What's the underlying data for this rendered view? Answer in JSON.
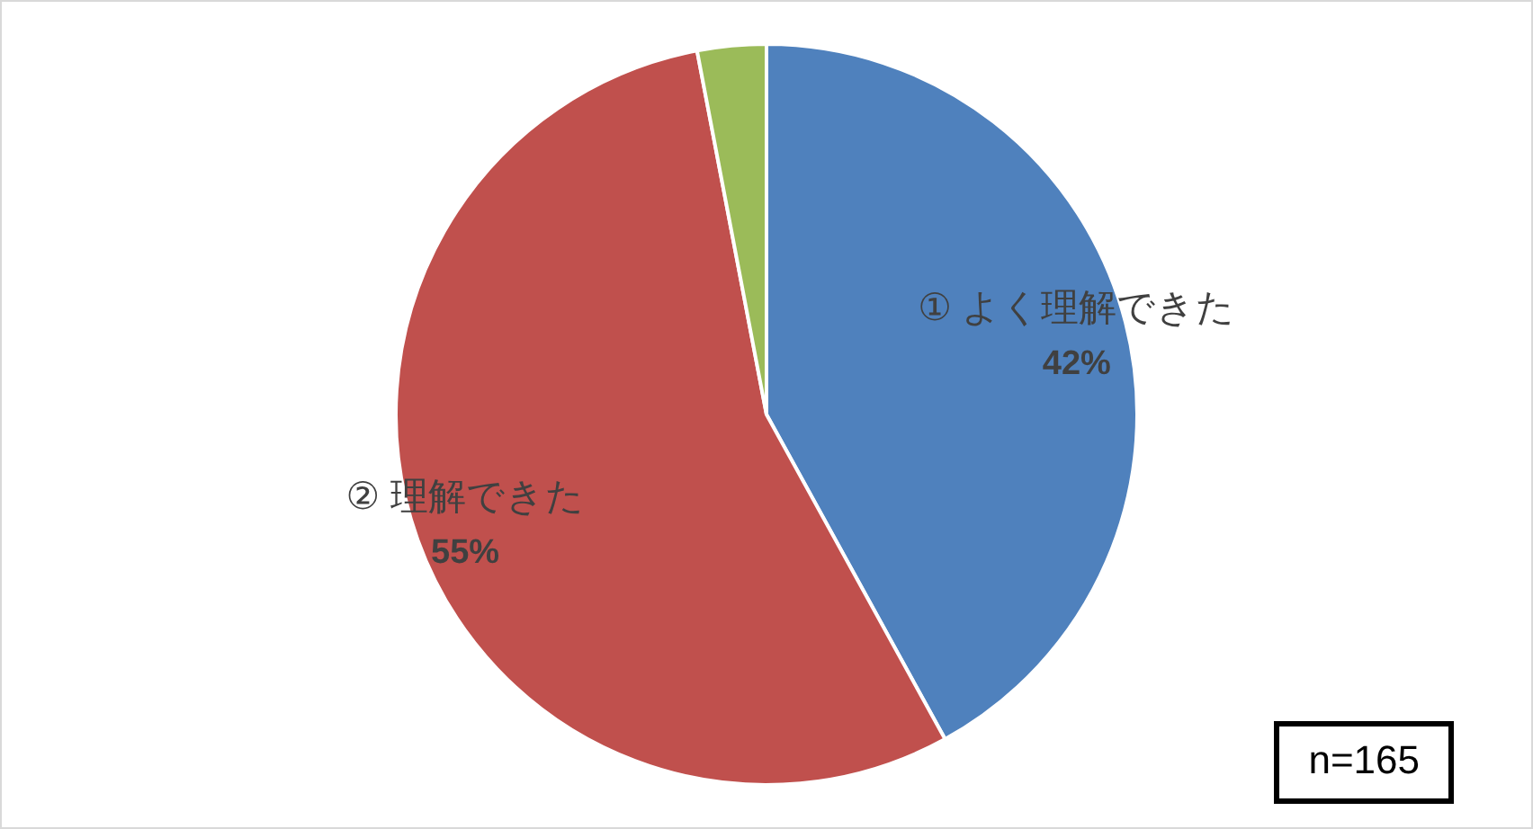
{
  "chart_data": {
    "type": "pie",
    "categories": [
      "① よく理解できた",
      "② 理解できた",
      null
    ],
    "values": [
      42,
      55,
      3
    ],
    "value_labels": [
      "42%",
      "55%",
      null
    ],
    "colors": [
      "#4f81bd",
      "#c0504d",
      "#9bbb59"
    ],
    "annotations": [
      "n=165"
    ]
  }
}
